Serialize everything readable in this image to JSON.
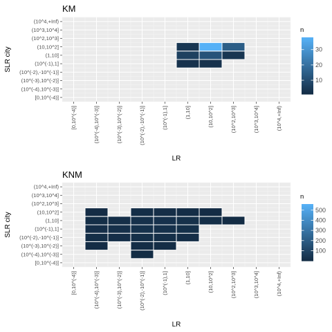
{
  "chart_data": [
    {
      "type": "heatmap",
      "title": "KM",
      "xlabel": "LR",
      "ylabel": "SLR city",
      "x_categories": [
        "[0,10^(-4)]",
        "(10^(-4),10^(-3)]",
        "(10^(-3),10^(-2)]",
        "(10^(-2),-10^(-1)]",
        "(10^(-1),1]",
        "(1,10]",
        "(10,10^2]",
        "(10^2,10^3]",
        "(10^3,10^4]",
        "(10^4,+Inf)"
      ],
      "y_categories": [
        "[0,10^(-4)]",
        "(10^(-4),10^(-3)]",
        "(10^(-3),10^(-2)]",
        "(10^(-2),-10^(-1)]",
        "(10^(-1),1]",
        "(1,10]",
        "(10,10^2]",
        "(10^2,10^3]",
        "(10^3,10^4]",
        "(10^4,+Inf)"
      ],
      "legend": {
        "title": "n",
        "ticks": [
          10,
          20,
          30
        ],
        "min": 1,
        "max": 38
      },
      "cells": [
        {
          "x": "(1,10]",
          "y": "(10^(-1),1]",
          "n": 3
        },
        {
          "x": "(10,10^2]",
          "y": "(10^(-1),1]",
          "n": 3
        },
        {
          "x": "(1,10]",
          "y": "(1,10]",
          "n": 7
        },
        {
          "x": "(10,10^2]",
          "y": "(1,10]",
          "n": 12
        },
        {
          "x": "(10^2,10^3]",
          "y": "(1,10]",
          "n": 4
        },
        {
          "x": "(1,10]",
          "y": "(10,10^2]",
          "n": 4
        },
        {
          "x": "(10,10^2]",
          "y": "(10,10^2]",
          "n": 38
        },
        {
          "x": "(10^2,10^3]",
          "y": "(10,10^2]",
          "n": 15
        }
      ]
    },
    {
      "type": "heatmap",
      "title": "KNM",
      "xlabel": "LR",
      "ylabel": "SLR city",
      "x_categories": [
        "[0,10^(-4)]",
        "(10^(-4),10^(-3)]",
        "(10^(-3),10^(-2)]",
        "(10^(-2),-10^(-1)]",
        "(10^(-1),1]",
        "(1,10]",
        "(10,10^2]",
        "(10^2,10^3]",
        "(10^3,10^4]",
        "(10^4,+Inf)"
      ],
      "y_categories": [
        "[0,10^(-4)]",
        "(10^(-4),10^(-3)]",
        "(10^(-3),10^(-2)]",
        "(10^(-2),-10^(-1)]",
        "(10^(-1),1]",
        "(1,10]",
        "(10,10^2]",
        "(10^2,10^3]",
        "(10^3,10^4]",
        "(10^4,+Inf)"
      ],
      "legend": {
        "title": "n",
        "ticks": [
          100,
          200,
          300,
          400,
          500
        ],
        "min": 1,
        "max": 560
      },
      "cells": [
        {
          "x": "(10^(-2),-10^(-1)]",
          "y": "(10^(-4),10^(-3)]",
          "n": 8
        },
        {
          "x": "(10^(-4),10^(-3)]",
          "y": "(10^(-3),10^(-2)]",
          "n": 6
        },
        {
          "x": "(10^(-2),-10^(-1)]",
          "y": "(10^(-3),10^(-2)]",
          "n": 10
        },
        {
          "x": "(10^(-1),1]",
          "y": "(10^(-3),10^(-2)]",
          "n": 9
        },
        {
          "x": "(10^(-4),10^(-3)]",
          "y": "(10^(-2),-10^(-1)]",
          "n": 12
        },
        {
          "x": "(10^(-3),10^(-2)]",
          "y": "(10^(-2),-10^(-1)]",
          "n": 15
        },
        {
          "x": "(10^(-2),-10^(-1)]",
          "y": "(10^(-2),-10^(-1)]",
          "n": 20
        },
        {
          "x": "(10^(-1),1]",
          "y": "(10^(-2),-10^(-1)]",
          "n": 18
        },
        {
          "x": "(1,10]",
          "y": "(10^(-2),-10^(-1)]",
          "n": 14
        },
        {
          "x": "(10^(-4),10^(-3)]",
          "y": "(10^(-1),1]",
          "n": 15
        },
        {
          "x": "(10^(-3),10^(-2)]",
          "y": "(10^(-1),1]",
          "n": 22
        },
        {
          "x": "(10^(-2),-10^(-1)]",
          "y": "(10^(-1),1]",
          "n": 30
        },
        {
          "x": "(10^(-1),1]",
          "y": "(10^(-1),1]",
          "n": 26
        },
        {
          "x": "(1,10]",
          "y": "(10^(-1),1]",
          "n": 20
        },
        {
          "x": "(10^(-4),10^(-3)]",
          "y": "(1,10]",
          "n": 12
        },
        {
          "x": "(10^(-3),10^(-2)]",
          "y": "(1,10]",
          "n": 18
        },
        {
          "x": "(10^(-2),-10^(-1)]",
          "y": "(1,10]",
          "n": 25
        },
        {
          "x": "(10^(-1),1]",
          "y": "(1,10]",
          "n": 28
        },
        {
          "x": "(1,10]",
          "y": "(1,10]",
          "n": 24
        },
        {
          "x": "(10,10^2]",
          "y": "(1,10]",
          "n": 16
        },
        {
          "x": "(10^2,10^3]",
          "y": "(1,10]",
          "n": 5
        },
        {
          "x": "(10^(-4),10^(-3)]",
          "y": "(10,10^2]",
          "n": 7
        },
        {
          "x": "(10^(-2),-10^(-1)]",
          "y": "(10,10^2]",
          "n": 12
        },
        {
          "x": "(10^(-1),1]",
          "y": "(10,10^2]",
          "n": 14
        },
        {
          "x": "(1,10]",
          "y": "(10,10^2]",
          "n": 10
        },
        {
          "x": "(10,10^2]",
          "y": "(10,10^2]",
          "n": 6
        }
      ]
    }
  ]
}
